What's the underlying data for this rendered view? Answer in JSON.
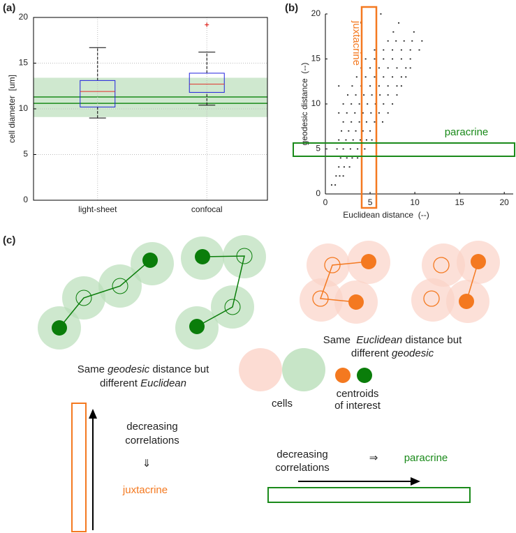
{
  "chart_data": [
    {
      "type": "box",
      "panel_label": "(a)",
      "ylabel": "cell diameter  [um]",
      "categories": [
        "light-sheet",
        "confocal"
      ],
      "whisker_low": [
        9.0,
        10.4
      ],
      "q1": [
        10.2,
        11.8
      ],
      "median": [
        11.9,
        12.7
      ],
      "q3": [
        13.1,
        13.9
      ],
      "whisker_high": [
        16.7,
        16.2
      ],
      "outliers": [
        [],
        [
          19.2
        ]
      ],
      "reference_band": [
        9.1,
        13.4
      ],
      "reference_lines": [
        10.6,
        11.3
      ],
      "ylim": [
        0,
        20
      ],
      "yticks": [
        0,
        5,
        10,
        15,
        20
      ],
      "grid": true,
      "colors": {
        "box": "#2222dd",
        "median": "#e0302a",
        "whisker": "#000000",
        "outlier": "#e0302a",
        "band": "#cfe8cf",
        "line": "#1a8a1a"
      }
    },
    {
      "type": "scatter",
      "panel_label": "(b)",
      "xlabel": "Euclidean distance  (--)",
      "ylabel": "geodesic distance  (--)",
      "annotations": [
        "juxtacrine",
        "paracrine"
      ],
      "x": [
        0.7,
        1.1,
        1.2,
        1.6,
        2.0,
        1.5,
        2.1,
        2.7,
        1.7,
        2.4,
        3.0,
        3.6,
        1.3,
        2.0,
        2.8,
        3.6,
        4.4,
        1.5,
        2.3,
        3.1,
        3.9,
        4.6,
        5.2,
        1.8,
        2.6,
        3.4,
        4.2,
        5.0,
        5.7,
        2.0,
        2.9,
        3.8,
        4.6,
        5.5,
        6.4,
        1.5,
        2.4,
        3.3,
        4.2,
        5.1,
        6.0,
        7.0,
        2.0,
        2.9,
        3.8,
        4.7,
        5.6,
        6.5,
        7.5,
        2.5,
        3.4,
        4.3,
        5.2,
        6.1,
        7.0,
        8.0,
        1.5,
        3.0,
        4.0,
        5.0,
        6.0,
        7.0,
        8.0,
        8.5,
        3.5,
        4.5,
        5.5,
        6.5,
        7.5,
        8.5,
        9.0,
        4.0,
        5.0,
        6.0,
        7.0,
        8.0,
        9.0,
        9.5,
        4.5,
        5.5,
        6.5,
        7.5,
        8.5,
        9.5,
        5.5,
        6.5,
        7.5,
        8.5,
        9.5,
        10.5,
        7.0,
        7.9,
        8.8,
        9.7,
        10.8,
        7.6,
        9.9,
        4.0,
        8.2,
        6.2
      ],
      "y": [
        1,
        1,
        2,
        2,
        2,
        3,
        3,
        3,
        4,
        4,
        4,
        4,
        5,
        5,
        5,
        5,
        5,
        6,
        6,
        6,
        6,
        6,
        6,
        7,
        7,
        7,
        7,
        7,
        7,
        8,
        8,
        8,
        8,
        8,
        8,
        9,
        9,
        9,
        9,
        9,
        9,
        9,
        10,
        10,
        10,
        10,
        10,
        10,
        10,
        11,
        11,
        11,
        11,
        11,
        11,
        11,
        12,
        12,
        12,
        12,
        12,
        12,
        12,
        12,
        13,
        13,
        13,
        13,
        13,
        13,
        13,
        14,
        14,
        14,
        14,
        14,
        14,
        14,
        15,
        15,
        15,
        15,
        15,
        15,
        16,
        16,
        16,
        16,
        16,
        16,
        17,
        17,
        17,
        17,
        17,
        18,
        18,
        19,
        19,
        20
      ],
      "color": "#000000",
      "xlim": [
        0,
        21
      ],
      "xticks": [
        0,
        5,
        10,
        15,
        20
      ],
      "ylim": [
        0,
        20
      ],
      "yticks": [
        0,
        5,
        10,
        15,
        20
      ]
    }
  ],
  "diagram": {
    "panel_label": "(c)",
    "caption_left": [
      [
        "Same",
        "geodesic",
        "distance but"
      ],
      [
        "different",
        "Euclidean"
      ]
    ],
    "caption_right": [
      [
        "Same",
        "Euclidean",
        "distance but"
      ],
      [
        "different",
        "geodesic"
      ]
    ],
    "legend": {
      "cells": "cells",
      "centroids": [
        "centroids",
        "of interest"
      ]
    },
    "juxtacrine_block": [
      "decreasing",
      "correlations",
      "⇓",
      "juxtacrine"
    ],
    "paracrine_block": [
      "decreasing",
      "correlations",
      "⇒",
      "paracrine"
    ]
  }
}
